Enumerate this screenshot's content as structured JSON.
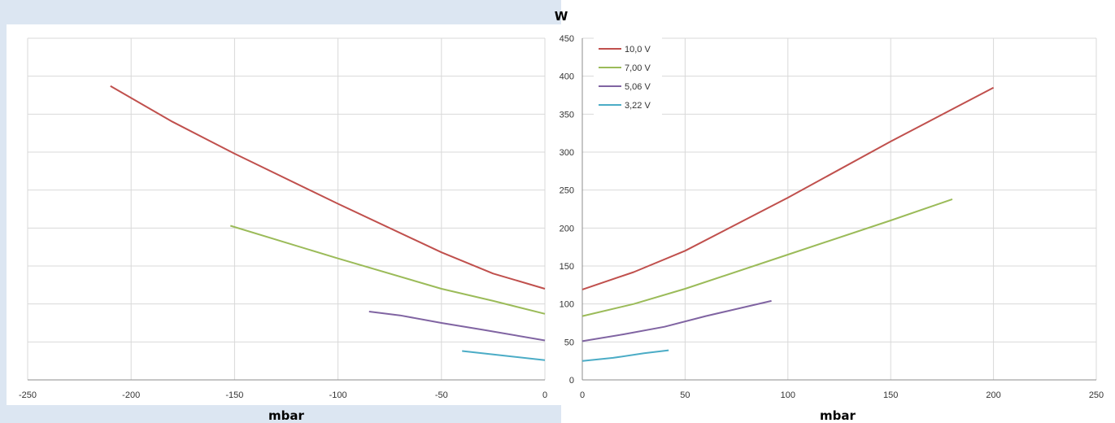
{
  "chart_data": {
    "type": "line",
    "ylabel": "W",
    "xlabel": "mbar",
    "ylim": [
      0,
      450
    ],
    "yticks": [
      0,
      50,
      100,
      150,
      200,
      250,
      300,
      350,
      400,
      450
    ],
    "left_xlim": [
      -250,
      0
    ],
    "left_xticks": [
      -250,
      -200,
      -150,
      -100,
      -50,
      0
    ],
    "right_xlim": [
      0,
      250
    ],
    "right_xticks": [
      0,
      50,
      100,
      150,
      200,
      250
    ],
    "grid": true,
    "legend_position": "top-left",
    "series": [
      {
        "name": "10,0 V",
        "color": "#c0504d",
        "left": [
          [
            -210,
            387
          ],
          [
            -180,
            340
          ],
          [
            -150,
            298
          ],
          [
            -100,
            232
          ],
          [
            -50,
            168
          ],
          [
            -25,
            140
          ],
          [
            0,
            120
          ]
        ],
        "right": [
          [
            0,
            119
          ],
          [
            25,
            142
          ],
          [
            50,
            170
          ],
          [
            100,
            240
          ],
          [
            150,
            314
          ],
          [
            200,
            385
          ]
        ]
      },
      {
        "name": "7,00 V",
        "color": "#9bbb59",
        "left": [
          [
            -152,
            203
          ],
          [
            -100,
            160
          ],
          [
            -50,
            120
          ],
          [
            -25,
            104
          ],
          [
            0,
            87
          ]
        ],
        "right": [
          [
            0,
            84
          ],
          [
            25,
            100
          ],
          [
            50,
            120
          ],
          [
            100,
            165
          ],
          [
            150,
            210
          ],
          [
            180,
            238
          ]
        ]
      },
      {
        "name": "5,06 V",
        "color": "#8064a2",
        "left": [
          [
            -85,
            90
          ],
          [
            -70,
            85
          ],
          [
            -50,
            75
          ],
          [
            -30,
            66
          ],
          [
            0,
            52
          ]
        ],
        "right": [
          [
            0,
            51
          ],
          [
            20,
            60
          ],
          [
            40,
            70
          ],
          [
            60,
            84
          ],
          [
            92,
            104
          ]
        ]
      },
      {
        "name": "3,22 V",
        "color": "#4bacc6",
        "left": [
          [
            -40,
            38
          ],
          [
            -20,
            32
          ],
          [
            0,
            26
          ]
        ],
        "right": [
          [
            0,
            25
          ],
          [
            15,
            29
          ],
          [
            30,
            35
          ],
          [
            42,
            39
          ]
        ]
      }
    ]
  }
}
